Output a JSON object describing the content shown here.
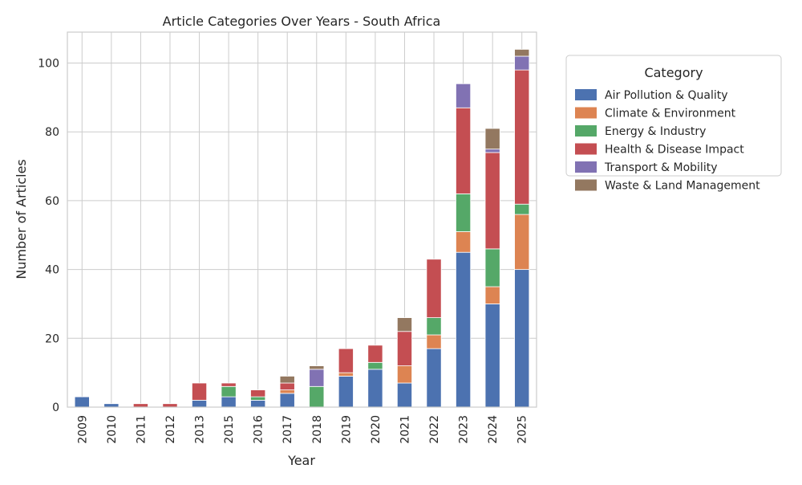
{
  "chart_data": {
    "type": "bar",
    "stacked": true,
    "title": "Article Categories Over Years - South Africa",
    "xlabel": "Year",
    "ylabel": "Number of Articles",
    "ylim": [
      0,
      109
    ],
    "yticks": [
      0,
      20,
      40,
      60,
      80,
      100
    ],
    "grid": true,
    "legend_title": "Category",
    "legend_position": "outside-right-top",
    "categories": [
      "2009",
      "2010",
      "2011",
      "2012",
      "2013",
      "2015",
      "2016",
      "2017",
      "2018",
      "2019",
      "2020",
      "2021",
      "2022",
      "2023",
      "2024",
      "2025"
    ],
    "series": [
      {
        "name": "Air Pollution & Quality",
        "color": "#4c72b0",
        "values": [
          3,
          1,
          0,
          0,
          2,
          3,
          2,
          4,
          0,
          9,
          11,
          7,
          17,
          45,
          30,
          40
        ]
      },
      {
        "name": "Climate & Environment",
        "color": "#dd8452",
        "values": [
          0,
          0,
          0,
          0,
          0,
          0,
          0,
          1,
          0,
          1,
          0,
          5,
          4,
          6,
          5,
          16
        ]
      },
      {
        "name": "Energy & Industry",
        "color": "#55a868",
        "values": [
          0,
          0,
          0,
          0,
          0,
          3,
          1,
          0,
          6,
          0,
          2,
          0,
          5,
          11,
          11,
          3
        ]
      },
      {
        "name": "Health & Disease Impact",
        "color": "#c44e52",
        "values": [
          0,
          0,
          1,
          1,
          5,
          1,
          2,
          2,
          0,
          7,
          5,
          10,
          17,
          25,
          28,
          39
        ]
      },
      {
        "name": "Transport & Mobility",
        "color": "#8172b3",
        "values": [
          0,
          0,
          0,
          0,
          0,
          0,
          0,
          0,
          5,
          0,
          0,
          0,
          0,
          7,
          1,
          4
        ]
      },
      {
        "name": "Waste & Land Management",
        "color": "#937860",
        "values": [
          0,
          0,
          0,
          0,
          0,
          0,
          0,
          2,
          1,
          0,
          0,
          4,
          0,
          0,
          6,
          2
        ]
      }
    ]
  }
}
